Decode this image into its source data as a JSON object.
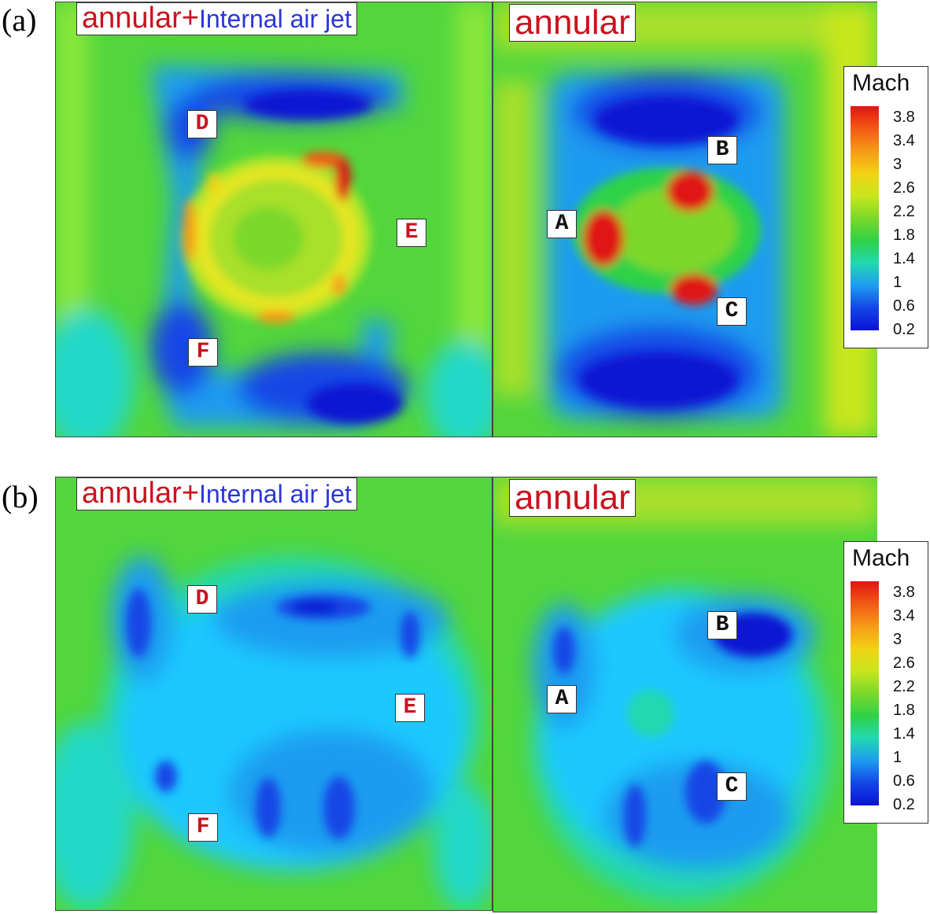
{
  "row_labels": {
    "a": "(a)",
    "b": "(b)"
  },
  "titles": {
    "combined_prefix": "annular+",
    "combined_suffix": "Internal air jet",
    "annular_only": "annular"
  },
  "markers": {
    "left": [
      "D",
      "E",
      "F"
    ],
    "right": [
      "A",
      "B",
      "C"
    ]
  },
  "legend": {
    "title": "Mach",
    "ticks": [
      "3.8",
      "3.4",
      "3",
      "2.6",
      "2.2",
      "1.8",
      "1.4",
      "1",
      "0.6",
      "0.2"
    ],
    "colors": [
      "#e01414",
      "#f25a14",
      "#f79a18",
      "#f2d214",
      "#c8e61e",
      "#7cd82a",
      "#2ed246",
      "#22d8b0",
      "#1e9cf0",
      "#1446e6",
      "#0a12d2"
    ]
  },
  "colors": {
    "title_red": "#c8141e",
    "title_blue": "#2a36d8",
    "field_base": "#5fd94a",
    "field_low": "#1436e0",
    "field_mid": "#1ec8ff",
    "field_high": "#f01e14"
  }
}
